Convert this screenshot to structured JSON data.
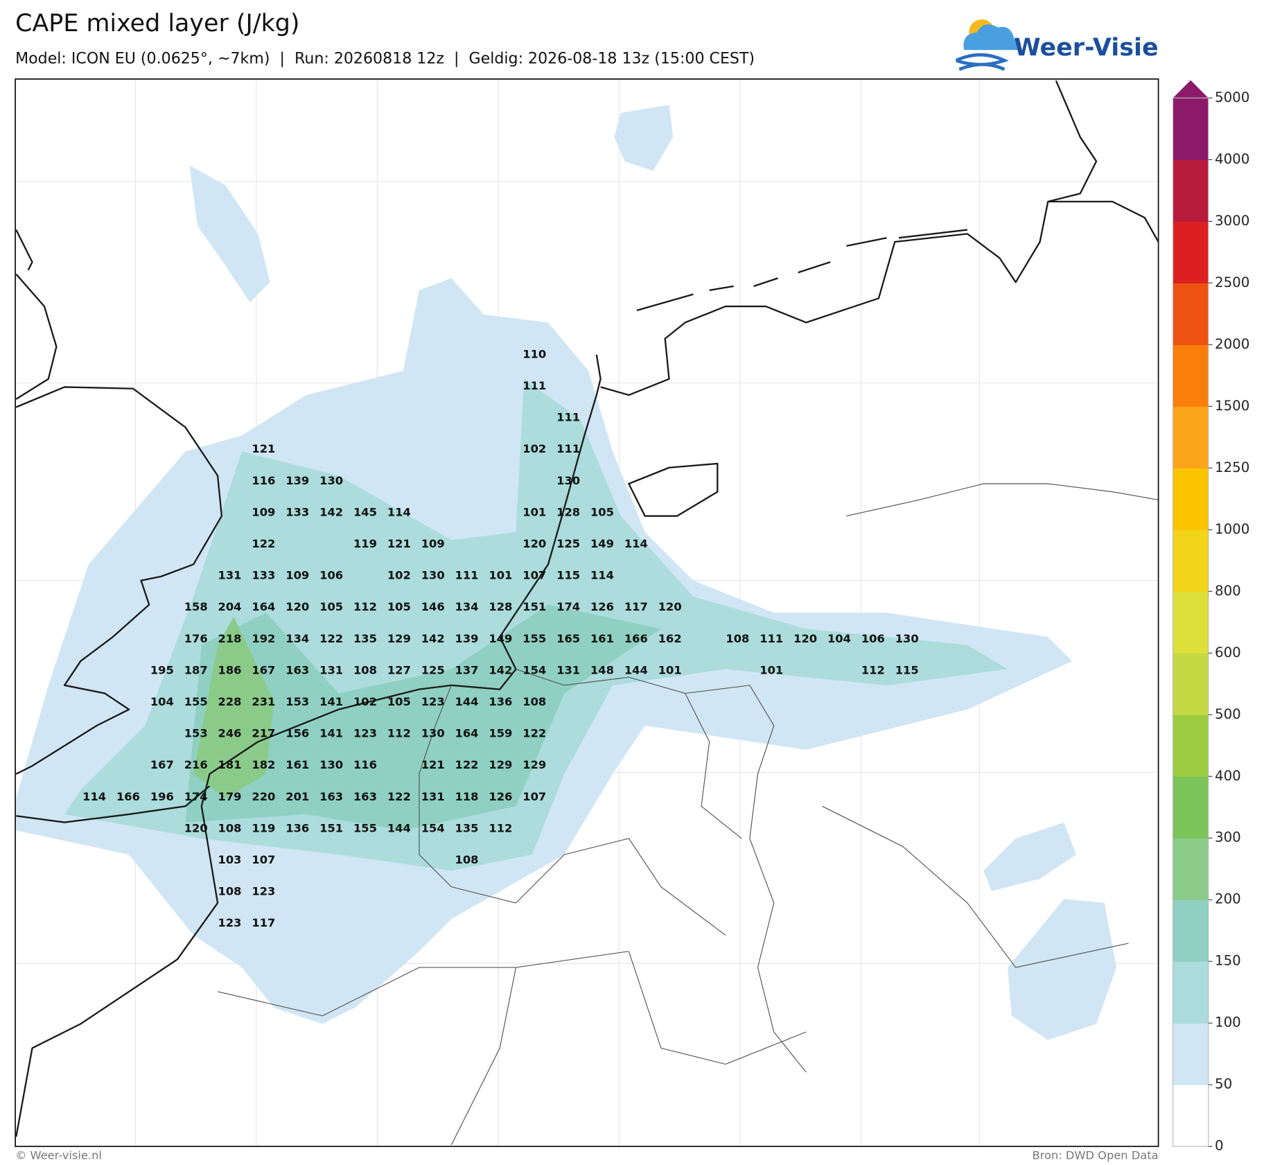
{
  "header": {
    "title": "CAPE mixed layer (J/kg)",
    "subtitle": "Model: ICON EU (0.0625°, ~7km)  |  Run: 20260818 12z  |  Geldig: 2026-08-18 13z (15:00 CEST)"
  },
  "logo": {
    "text": "Weer-Visie"
  },
  "colorbar": {
    "ticks": [
      0,
      50,
      100,
      150,
      200,
      300,
      400,
      500,
      600,
      800,
      1000,
      1250,
      1500,
      2000,
      2500,
      3000,
      4000,
      5000
    ],
    "colors": [
      "#ffffff",
      "#d0e6f5",
      "#acdcdc",
      "#8fd0c2",
      "#8bcb8a",
      "#7bc45a",
      "#9ccc40",
      "#c3d944",
      "#dde03a",
      "#f2d41a",
      "#fbc400",
      "#fca51a",
      "#f97f0a",
      "#ee5212",
      "#dc2020",
      "#b81c3c",
      "#8b1a6a"
    ]
  },
  "map": {
    "grid": [
      [
        null,
        null,
        null,
        null,
        null,
        null,
        null,
        null,
        null,
        null,
        null,
        null,
        null,
        110,
        null,
        null,
        null,
        null,
        null,
        null,
        null,
        null,
        null,
        null,
        null
      ],
      [
        null,
        null,
        null,
        null,
        null,
        null,
        null,
        null,
        null,
        null,
        null,
        null,
        null,
        111,
        null,
        null,
        null,
        null,
        null,
        null,
        null,
        null,
        null,
        null,
        null
      ],
      [
        null,
        null,
        null,
        null,
        null,
        null,
        null,
        null,
        null,
        null,
        null,
        null,
        null,
        null,
        111,
        null,
        null,
        null,
        null,
        null,
        null,
        null,
        null,
        null,
        null
      ],
      [
        null,
        null,
        null,
        null,
        null,
        121,
        null,
        null,
        null,
        null,
        null,
        null,
        null,
        102,
        111,
        null,
        null,
        null,
        null,
        null,
        null,
        null,
        null,
        null,
        null
      ],
      [
        null,
        null,
        null,
        null,
        null,
        116,
        139,
        130,
        null,
        null,
        null,
        null,
        null,
        null,
        130,
        null,
        null,
        null,
        null,
        null,
        null,
        null,
        null,
        null,
        null
      ],
      [
        null,
        null,
        null,
        null,
        null,
        109,
        133,
        142,
        145,
        114,
        null,
        null,
        null,
        101,
        128,
        105,
        null,
        null,
        null,
        null,
        null,
        null,
        null,
        null,
        null
      ],
      [
        null,
        null,
        null,
        null,
        null,
        122,
        null,
        null,
        119,
        121,
        109,
        null,
        null,
        120,
        125,
        149,
        114,
        null,
        null,
        null,
        null,
        null,
        null,
        null,
        null
      ],
      [
        null,
        null,
        null,
        null,
        131,
        133,
        109,
        106,
        null,
        102,
        130,
        111,
        101,
        107,
        115,
        114,
        null,
        null,
        null,
        null,
        null,
        null,
        null,
        null,
        null
      ],
      [
        null,
        null,
        null,
        158,
        204,
        164,
        120,
        105,
        112,
        105,
        146,
        134,
        128,
        151,
        174,
        126,
        117,
        120,
        null,
        null,
        null,
        null,
        null,
        null,
        null
      ],
      [
        null,
        null,
        null,
        176,
        218,
        192,
        134,
        122,
        135,
        129,
        142,
        139,
        149,
        155,
        165,
        161,
        166,
        162,
        null,
        108,
        111,
        120,
        104,
        106,
        130
      ],
      [
        null,
        null,
        195,
        187,
        186,
        167,
        163,
        131,
        108,
        127,
        125,
        137,
        142,
        154,
        131,
        148,
        144,
        101,
        null,
        null,
        101,
        null,
        null,
        112,
        115
      ],
      [
        null,
        null,
        104,
        155,
        228,
        231,
        153,
        141,
        102,
        105,
        123,
        144,
        136,
        108,
        null,
        null,
        null,
        null,
        null,
        null,
        null,
        null,
        null,
        null,
        null
      ],
      [
        null,
        null,
        null,
        153,
        246,
        217,
        156,
        141,
        123,
        112,
        130,
        164,
        159,
        122,
        null,
        null,
        null,
        null,
        null,
        null,
        null,
        null,
        null,
        null,
        null
      ],
      [
        null,
        null,
        167,
        216,
        181,
        182,
        161,
        130,
        116,
        null,
        121,
        122,
        129,
        129,
        null,
        null,
        null,
        null,
        null,
        null,
        null,
        null,
        null,
        null,
        null
      ],
      [
        114,
        166,
        196,
        174,
        179,
        220,
        201,
        163,
        163,
        122,
        131,
        118,
        126,
        107,
        null,
        null,
        null,
        null,
        null,
        null,
        null,
        null,
        null,
        null,
        null
      ],
      [
        null,
        null,
        null,
        120,
        108,
        119,
        136,
        151,
        155,
        144,
        154,
        135,
        112,
        null,
        null,
        null,
        null,
        null,
        null,
        null,
        null,
        null,
        null,
        null,
        null
      ],
      [
        null,
        null,
        null,
        null,
        103,
        107,
        null,
        null,
        null,
        null,
        null,
        108,
        null,
        null,
        null,
        null,
        null,
        null,
        null,
        null,
        null,
        null,
        null,
        null,
        null
      ],
      [
        null,
        null,
        null,
        null,
        108,
        123,
        null,
        null,
        null,
        null,
        null,
        null,
        null,
        null,
        null,
        null,
        null,
        null,
        null,
        null,
        null,
        null,
        null,
        null,
        null
      ],
      [
        null,
        null,
        null,
        null,
        123,
        117,
        null,
        null,
        null,
        null,
        null,
        null,
        null,
        null,
        null,
        null,
        null,
        null,
        null,
        null,
        null,
        null,
        null,
        null,
        null
      ]
    ]
  },
  "footer": {
    "left": "© Weer-visie.nl",
    "right": "Bron: DWD Open Data"
  }
}
